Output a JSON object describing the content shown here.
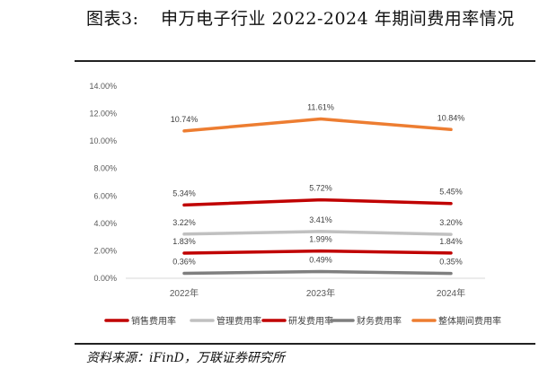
{
  "figure": {
    "label": "图表3:",
    "title": "申万电子行业 2022-2024 年期间费用率情况",
    "source": "资料来源：iFinD，万联证券研究所"
  },
  "chart_data": {
    "type": "line",
    "categories": [
      "2022年",
      "2023年",
      "2024年"
    ],
    "ylim": [
      0,
      14
    ],
    "yticks": [
      "0.00%",
      "2.00%",
      "4.00%",
      "6.00%",
      "8.00%",
      "10.00%",
      "12.00%",
      "14.00%"
    ],
    "grid": false,
    "legend_position": "bottom",
    "series": [
      {
        "name": "销售费用率",
        "color": "#C00000",
        "values": [
          1.83,
          1.99,
          1.84
        ],
        "labels": [
          "1.83%",
          "1.99%",
          "1.84%"
        ],
        "label_pos": "above"
      },
      {
        "name": "管理费用率",
        "color": "#C0C0C0",
        "values": [
          3.22,
          3.41,
          3.2
        ],
        "labels": [
          "3.22%",
          "3.41%",
          "3.20%"
        ],
        "label_pos": "above"
      },
      {
        "name": "研发费用率",
        "color": "#C00000",
        "values": [
          5.34,
          5.72,
          5.45
        ],
        "labels": [
          "5.34%",
          "5.72%",
          "5.45%"
        ],
        "label_pos": "above"
      },
      {
        "name": "财务费用率",
        "color": "#7F7F7F",
        "values": [
          0.36,
          0.49,
          0.35
        ],
        "labels": [
          "0.36%",
          "0.49%",
          "0.35%"
        ],
        "label_pos": "above"
      },
      {
        "name": "整体期间费用率",
        "color": "#ED7D31",
        "values": [
          10.74,
          11.61,
          10.84
        ],
        "labels": [
          "10.74%",
          "11.61%",
          "10.84%"
        ],
        "label_pos": "above"
      }
    ]
  }
}
